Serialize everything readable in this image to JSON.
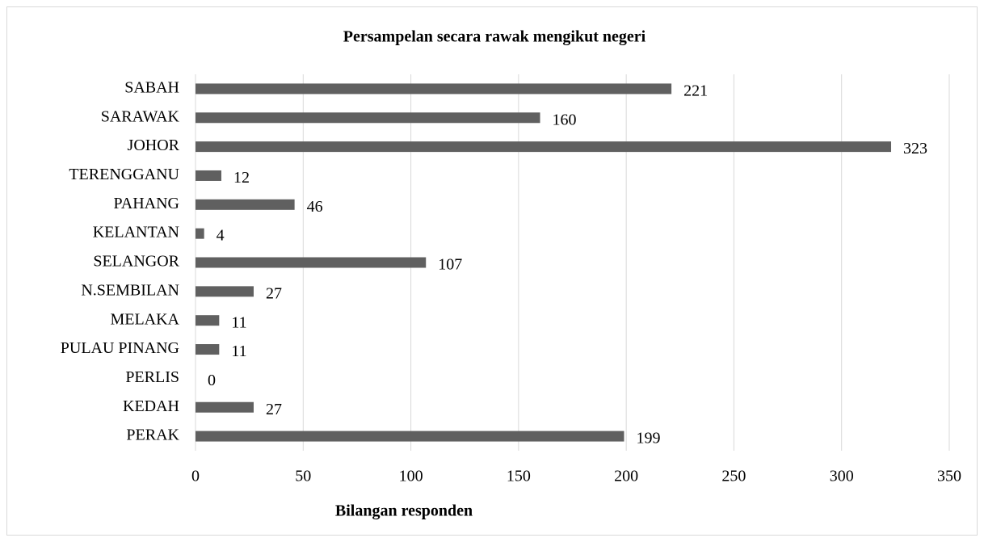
{
  "chart_data": {
    "type": "bar",
    "orientation": "horizontal",
    "title": "Persampelan secara rawak mengikut negeri",
    "x_label": "Bilangan responden",
    "categories": [
      "SABAH",
      "SARAWAK",
      "JOHOR",
      "TERENGGANU",
      "PAHANG",
      "KELANTAN",
      "SELANGOR",
      "N.SEMBILAN",
      "MELAKA",
      "PULAU PINANG",
      "PERLIS",
      "KEDAH",
      "PERAK"
    ],
    "values": [
      221,
      160,
      323,
      12,
      46,
      4,
      107,
      27,
      11,
      11,
      0,
      27,
      199
    ],
    "color": "#606060",
    "xlim": [
      0,
      350
    ],
    "xticks": [
      0,
      50,
      100,
      150,
      200,
      250,
      300,
      350
    ],
    "grid": true,
    "data_labels": true
  }
}
